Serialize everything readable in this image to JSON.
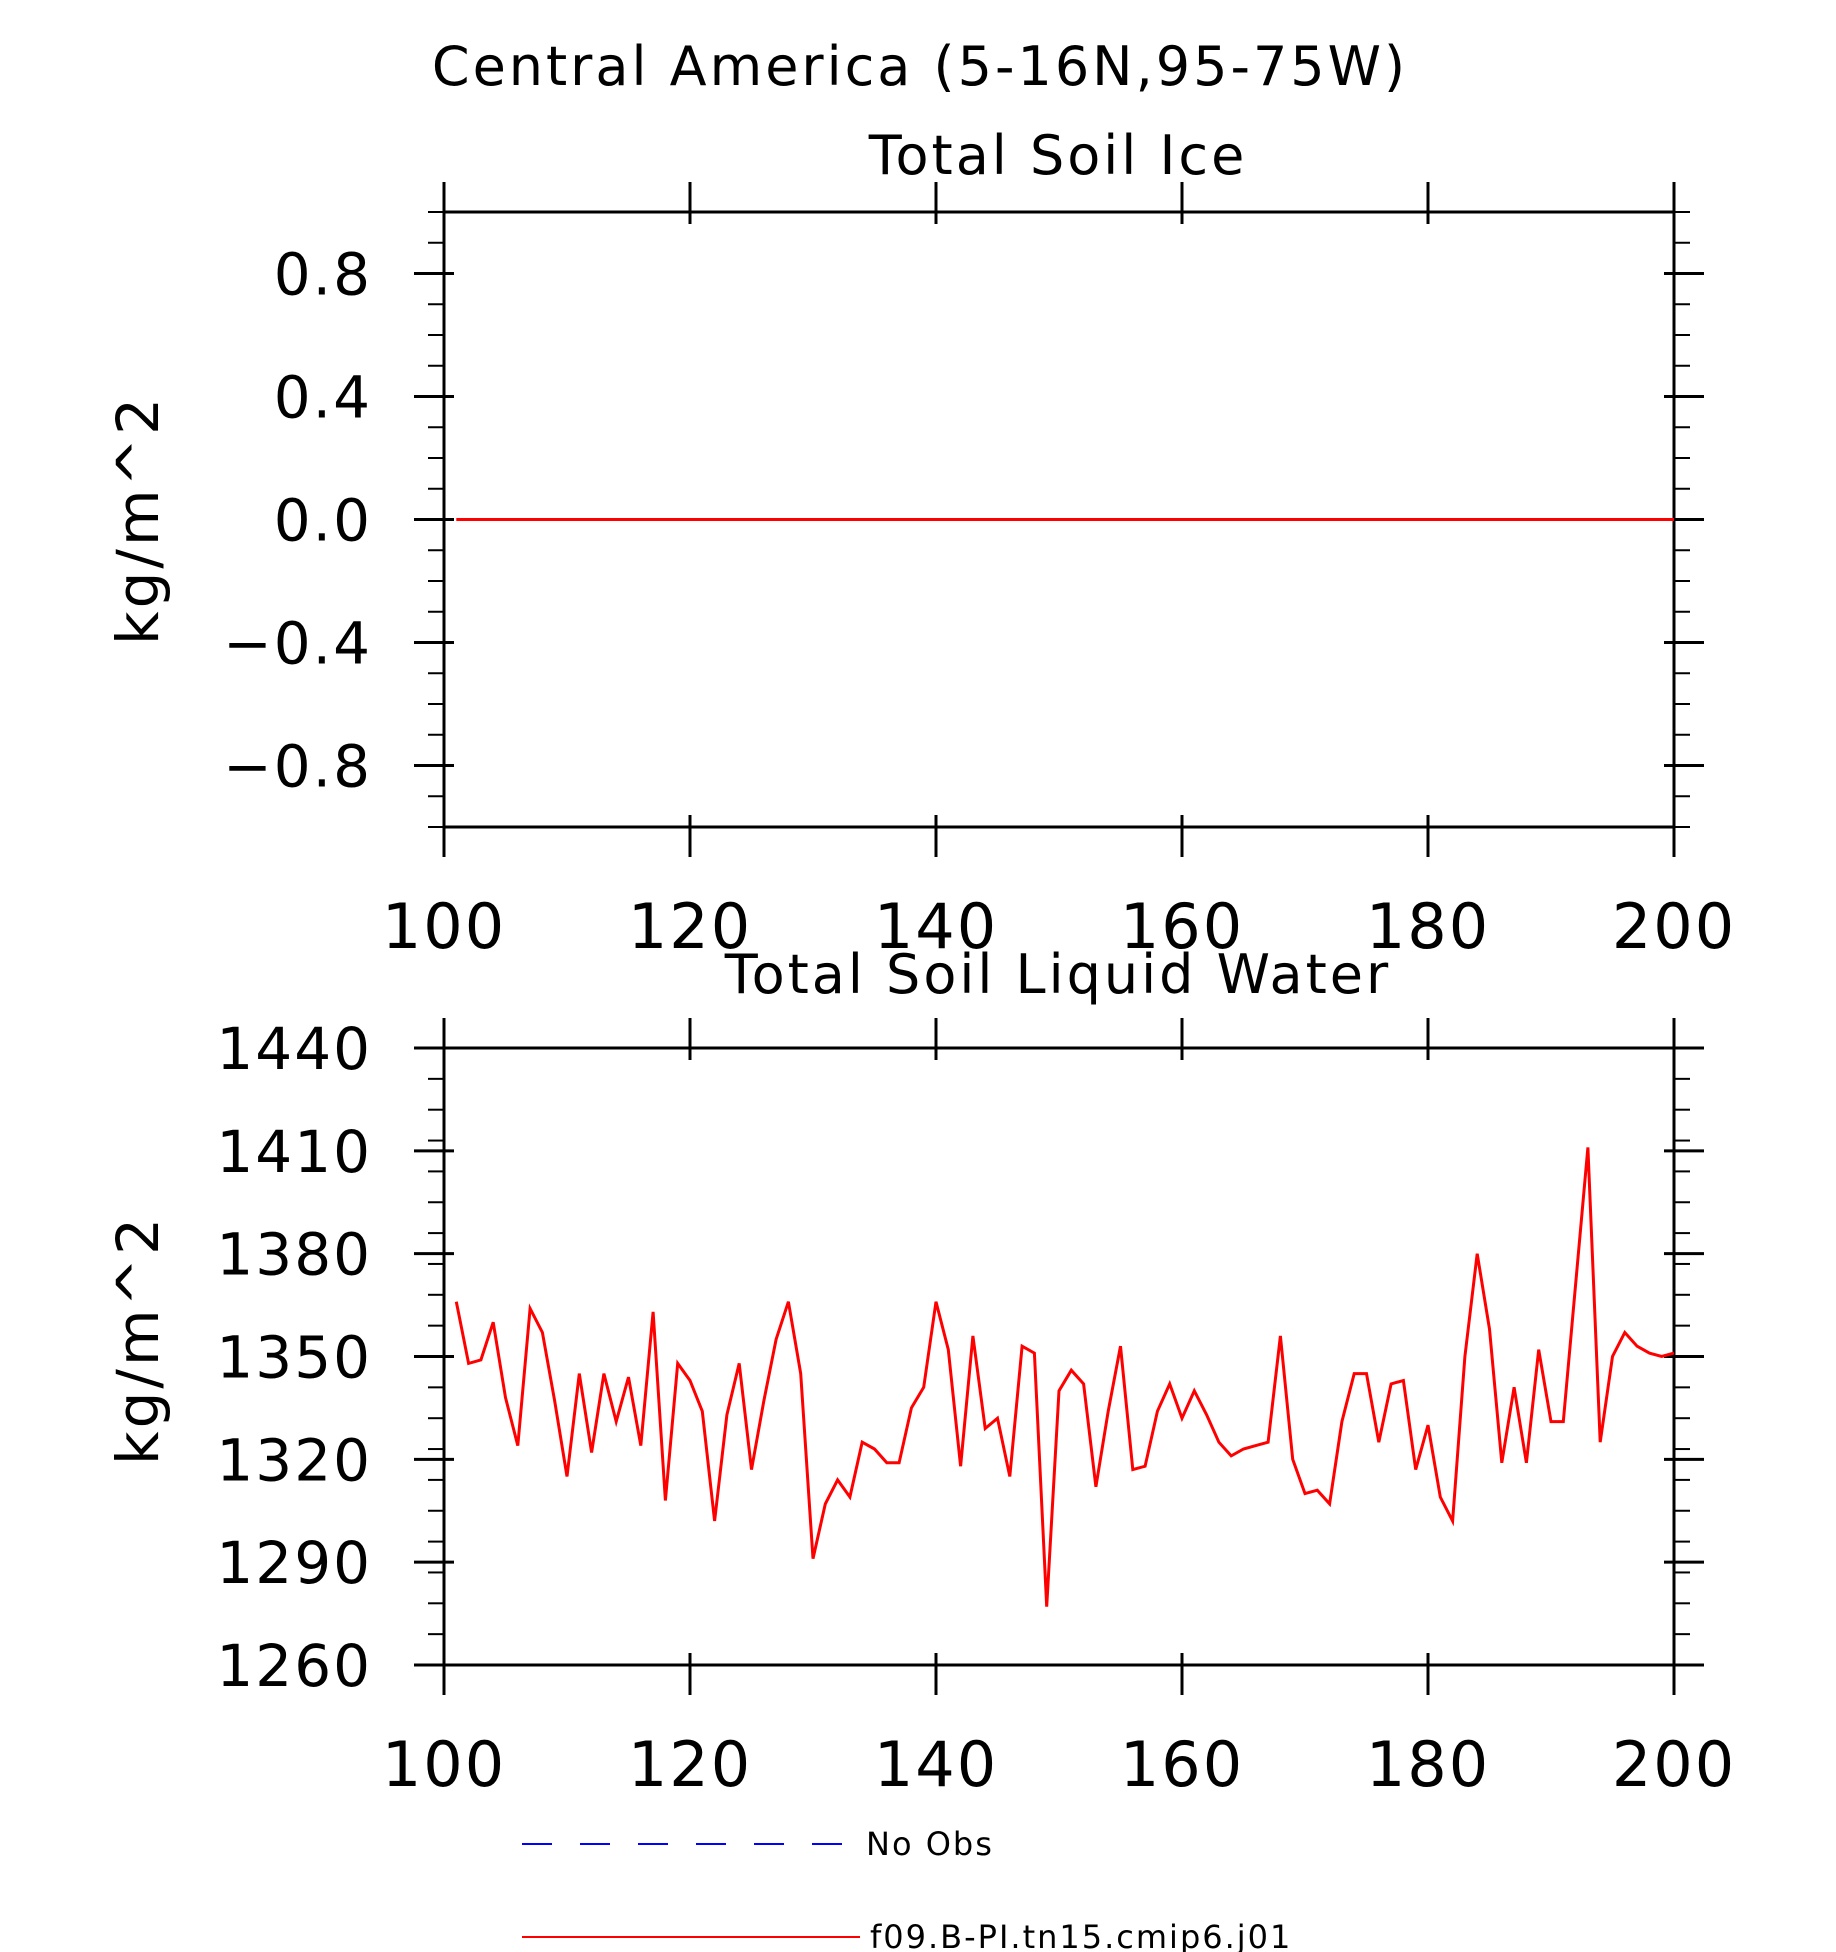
{
  "figure": {
    "title": "Central America (5-16N,95-75W)"
  },
  "chart_data": [
    {
      "type": "line",
      "title": "Total Soil Ice",
      "xlabel": "",
      "ylabel": "kg/m^2",
      "xlim": [
        100,
        200
      ],
      "ylim": [
        -1.0,
        1.0
      ],
      "xticks": [
        100,
        120,
        140,
        160,
        180,
        200
      ],
      "yticks": [
        -0.8,
        -0.4,
        0.0,
        0.4,
        0.8
      ],
      "ytick_labels": [
        "−0.8",
        "−0.4",
        "0.0",
        "0.4",
        "0.8"
      ],
      "grid": false,
      "series": [
        {
          "name": "f09.B-PI.tn15.cmip6.j01",
          "color": "#ff0000",
          "x_start": 101,
          "x_step": 1,
          "values": [
            0,
            0,
            0,
            0,
            0,
            0,
            0,
            0,
            0,
            0,
            0,
            0,
            0,
            0,
            0,
            0,
            0,
            0,
            0,
            0,
            0,
            0,
            0,
            0,
            0,
            0,
            0,
            0,
            0,
            0,
            0,
            0,
            0,
            0,
            0,
            0,
            0,
            0,
            0,
            0,
            0,
            0,
            0,
            0,
            0,
            0,
            0,
            0,
            0,
            0,
            0,
            0,
            0,
            0,
            0,
            0,
            0,
            0,
            0,
            0,
            0,
            0,
            0,
            0,
            0,
            0,
            0,
            0,
            0,
            0,
            0,
            0,
            0,
            0,
            0,
            0,
            0,
            0,
            0,
            0,
            0,
            0,
            0,
            0,
            0,
            0,
            0,
            0,
            0,
            0,
            0,
            0,
            0,
            0,
            0,
            0,
            0,
            0,
            0,
            0
          ]
        }
      ]
    },
    {
      "type": "line",
      "title": "Total Soil Liquid Water",
      "xlabel": "",
      "ylabel": "kg/m^2",
      "xlim": [
        100,
        200
      ],
      "ylim": [
        1260,
        1440
      ],
      "xticks": [
        100,
        120,
        140,
        160,
        180,
        200
      ],
      "yticks": [
        1260,
        1290,
        1320,
        1350,
        1380,
        1410,
        1440
      ],
      "ytick_labels": [
        "1260",
        "1290",
        "1320",
        "1350",
        "1380",
        "1410",
        "1440"
      ],
      "grid": false,
      "series": [
        {
          "name": "f09.B-PI.tn15.cmip6.j01",
          "color": "#ff0000",
          "x_start": 101,
          "x_step": 1,
          "values": [
            1366,
            1348,
            1349,
            1360,
            1338,
            1324,
            1364,
            1357,
            1337,
            1315,
            1345,
            1322,
            1345,
            1331,
            1344,
            1324,
            1363,
            1308,
            1348,
            1343,
            1334,
            1302,
            1333,
            1348,
            1317,
            1337,
            1355,
            1366,
            1345,
            1291,
            1307,
            1314,
            1309,
            1325,
            1323,
            1319,
            1319,
            1335,
            1341,
            1366,
            1352,
            1318,
            1356,
            1329,
            1332,
            1315,
            1353,
            1351,
            1277,
            1340,
            1346,
            1342,
            1312,
            1334,
            1353,
            1317,
            1318,
            1334,
            1342,
            1332,
            1340,
            1333,
            1325,
            1321,
            1323,
            1324,
            1325,
            1356,
            1320,
            1310,
            1311,
            1307,
            1331,
            1345,
            1345,
            1325,
            1342,
            1343,
            1317,
            1330,
            1309,
            1302,
            1350,
            1380,
            1358,
            1319,
            1341,
            1319,
            1352,
            1331,
            1331,
            1371,
            1411,
            1325,
            1350,
            1357,
            1353,
            1351,
            1350,
            1351
          ]
        }
      ]
    }
  ],
  "legend": {
    "placement": "bottom-left",
    "entries": [
      {
        "label": "No Obs",
        "color": "#0000ff",
        "style": "dashed"
      },
      {
        "label": "f09.B-PI.tn15.cmip6.j01",
        "color": "#ff0000",
        "style": "solid"
      }
    ]
  }
}
